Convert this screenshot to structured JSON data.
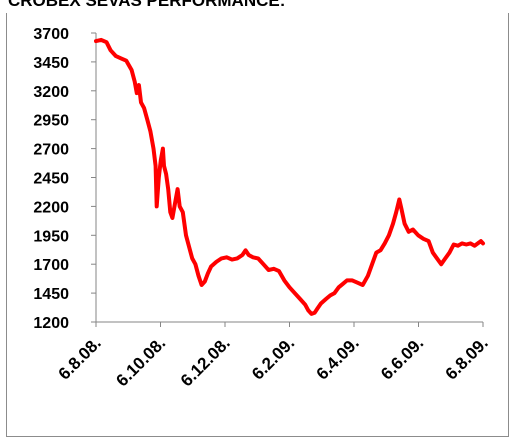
{
  "chart_data": {
    "type": "line",
    "title": "CROBEX SEVAS PERFORMANCE:",
    "xlabel": "",
    "ylabel": "",
    "ylim": [
      1200,
      3700
    ],
    "yticks": [
      1200,
      1450,
      1700,
      1950,
      2200,
      2450,
      2700,
      2950,
      3200,
      3450,
      3700
    ],
    "x_tick_labels": [
      "6.8.08.",
      "6.10.08.",
      "6.12.08.",
      "6.2.09.",
      "6.4.09.",
      "6.6.09.",
      "6.8.09."
    ],
    "grid": false,
    "legend": "none",
    "series": [
      {
        "color": "#ff0000",
        "points": [
          [
            0,
            3630
          ],
          [
            5,
            3640
          ],
          [
            10,
            3620
          ],
          [
            14,
            3550
          ],
          [
            19,
            3500
          ],
          [
            24,
            3480
          ],
          [
            29,
            3460
          ],
          [
            34,
            3380
          ],
          [
            37,
            3280
          ],
          [
            39,
            3180
          ],
          [
            41,
            3250
          ],
          [
            43,
            3100
          ],
          [
            46,
            3050
          ],
          [
            49,
            2950
          ],
          [
            52,
            2850
          ],
          [
            55,
            2700
          ],
          [
            57,
            2550
          ],
          [
            58,
            2200
          ],
          [
            60,
            2450
          ],
          [
            62,
            2600
          ],
          [
            64,
            2700
          ],
          [
            65,
            2550
          ],
          [
            67,
            2480
          ],
          [
            69,
            2350
          ],
          [
            71,
            2150
          ],
          [
            73,
            2100
          ],
          [
            76,
            2250
          ],
          [
            78,
            2350
          ],
          [
            80,
            2200
          ],
          [
            83,
            2150
          ],
          [
            86,
            1950
          ],
          [
            89,
            1850
          ],
          [
            92,
            1750
          ],
          [
            95,
            1700
          ],
          [
            98,
            1600
          ],
          [
            101,
            1520
          ],
          [
            104,
            1550
          ],
          [
            107,
            1620
          ],
          [
            110,
            1680
          ],
          [
            115,
            1720
          ],
          [
            120,
            1750
          ],
          [
            125,
            1760
          ],
          [
            130,
            1740
          ],
          [
            135,
            1750
          ],
          [
            140,
            1780
          ],
          [
            143,
            1820
          ],
          [
            146,
            1780
          ],
          [
            150,
            1760
          ],
          [
            155,
            1750
          ],
          [
            160,
            1700
          ],
          [
            165,
            1650
          ],
          [
            170,
            1660
          ],
          [
            175,
            1640
          ],
          [
            180,
            1560
          ],
          [
            185,
            1500
          ],
          [
            190,
            1450
          ],
          [
            195,
            1400
          ],
          [
            200,
            1350
          ],
          [
            203,
            1300
          ],
          [
            206,
            1270
          ],
          [
            209,
            1280
          ],
          [
            212,
            1320
          ],
          [
            215,
            1360
          ],
          [
            220,
            1400
          ],
          [
            224,
            1430
          ],
          [
            228,
            1450
          ],
          [
            232,
            1500
          ],
          [
            236,
            1530
          ],
          [
            240,
            1560
          ],
          [
            245,
            1560
          ],
          [
            250,
            1540
          ],
          [
            255,
            1520
          ],
          [
            260,
            1600
          ],
          [
            264,
            1700
          ],
          [
            268,
            1800
          ],
          [
            272,
            1820
          ],
          [
            276,
            1880
          ],
          [
            280,
            1950
          ],
          [
            284,
            2050
          ],
          [
            287,
            2150
          ],
          [
            290,
            2260
          ],
          [
            292,
            2180
          ],
          [
            295,
            2050
          ],
          [
            299,
            1980
          ],
          [
            303,
            2000
          ],
          [
            308,
            1950
          ],
          [
            313,
            1920
          ],
          [
            318,
            1900
          ],
          [
            322,
            1800
          ],
          [
            326,
            1750
          ],
          [
            330,
            1700
          ],
          [
            334,
            1750
          ],
          [
            338,
            1800
          ],
          [
            342,
            1870
          ],
          [
            346,
            1860
          ],
          [
            350,
            1880
          ],
          [
            354,
            1870
          ],
          [
            358,
            1880
          ],
          [
            362,
            1860
          ],
          [
            365,
            1880
          ],
          [
            368,
            1900
          ],
          [
            370,
            1880
          ]
        ]
      }
    ]
  }
}
